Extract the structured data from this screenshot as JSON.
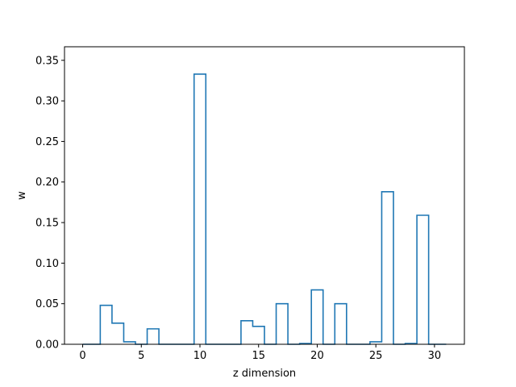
{
  "chart_data": {
    "type": "step",
    "title": "",
    "xlabel": "z dimension",
    "ylabel": "w",
    "xlim": [
      -1.55,
      32.55
    ],
    "ylim": [
      0,
      0.3667
    ],
    "xticks": [
      0,
      5,
      10,
      15,
      20,
      25,
      30
    ],
    "xtick_labels": [
      "0",
      "5",
      "10",
      "15",
      "20",
      "25",
      "30"
    ],
    "yticks": [
      0.0,
      0.05,
      0.1,
      0.15,
      0.2,
      0.25,
      0.3,
      0.35
    ],
    "ytick_labels": [
      "0.00",
      "0.05",
      "0.10",
      "0.15",
      "0.20",
      "0.25",
      "0.30",
      "0.35"
    ],
    "grid": false,
    "series": [
      {
        "color": "#1f77b4",
        "x": [
          0,
          1,
          2,
          3,
          4,
          5,
          6,
          7,
          8,
          9,
          10,
          11,
          12,
          13,
          14,
          15,
          16,
          17,
          18,
          19,
          20,
          21,
          22,
          23,
          24,
          25,
          26,
          27,
          28,
          29,
          30,
          31
        ],
        "values": [
          0.0,
          0.0,
          0.048,
          0.026,
          0.003,
          0.0,
          0.019,
          0.0,
          0.0,
          0.0,
          0.333,
          0.0,
          0.0,
          0.0,
          0.029,
          0.022,
          0.0,
          0.05,
          0.0,
          0.001,
          0.067,
          0.0,
          0.05,
          0.0,
          0.0,
          0.003,
          0.188,
          0.0,
          0.001,
          0.159,
          0.0,
          0.0
        ]
      }
    ]
  }
}
